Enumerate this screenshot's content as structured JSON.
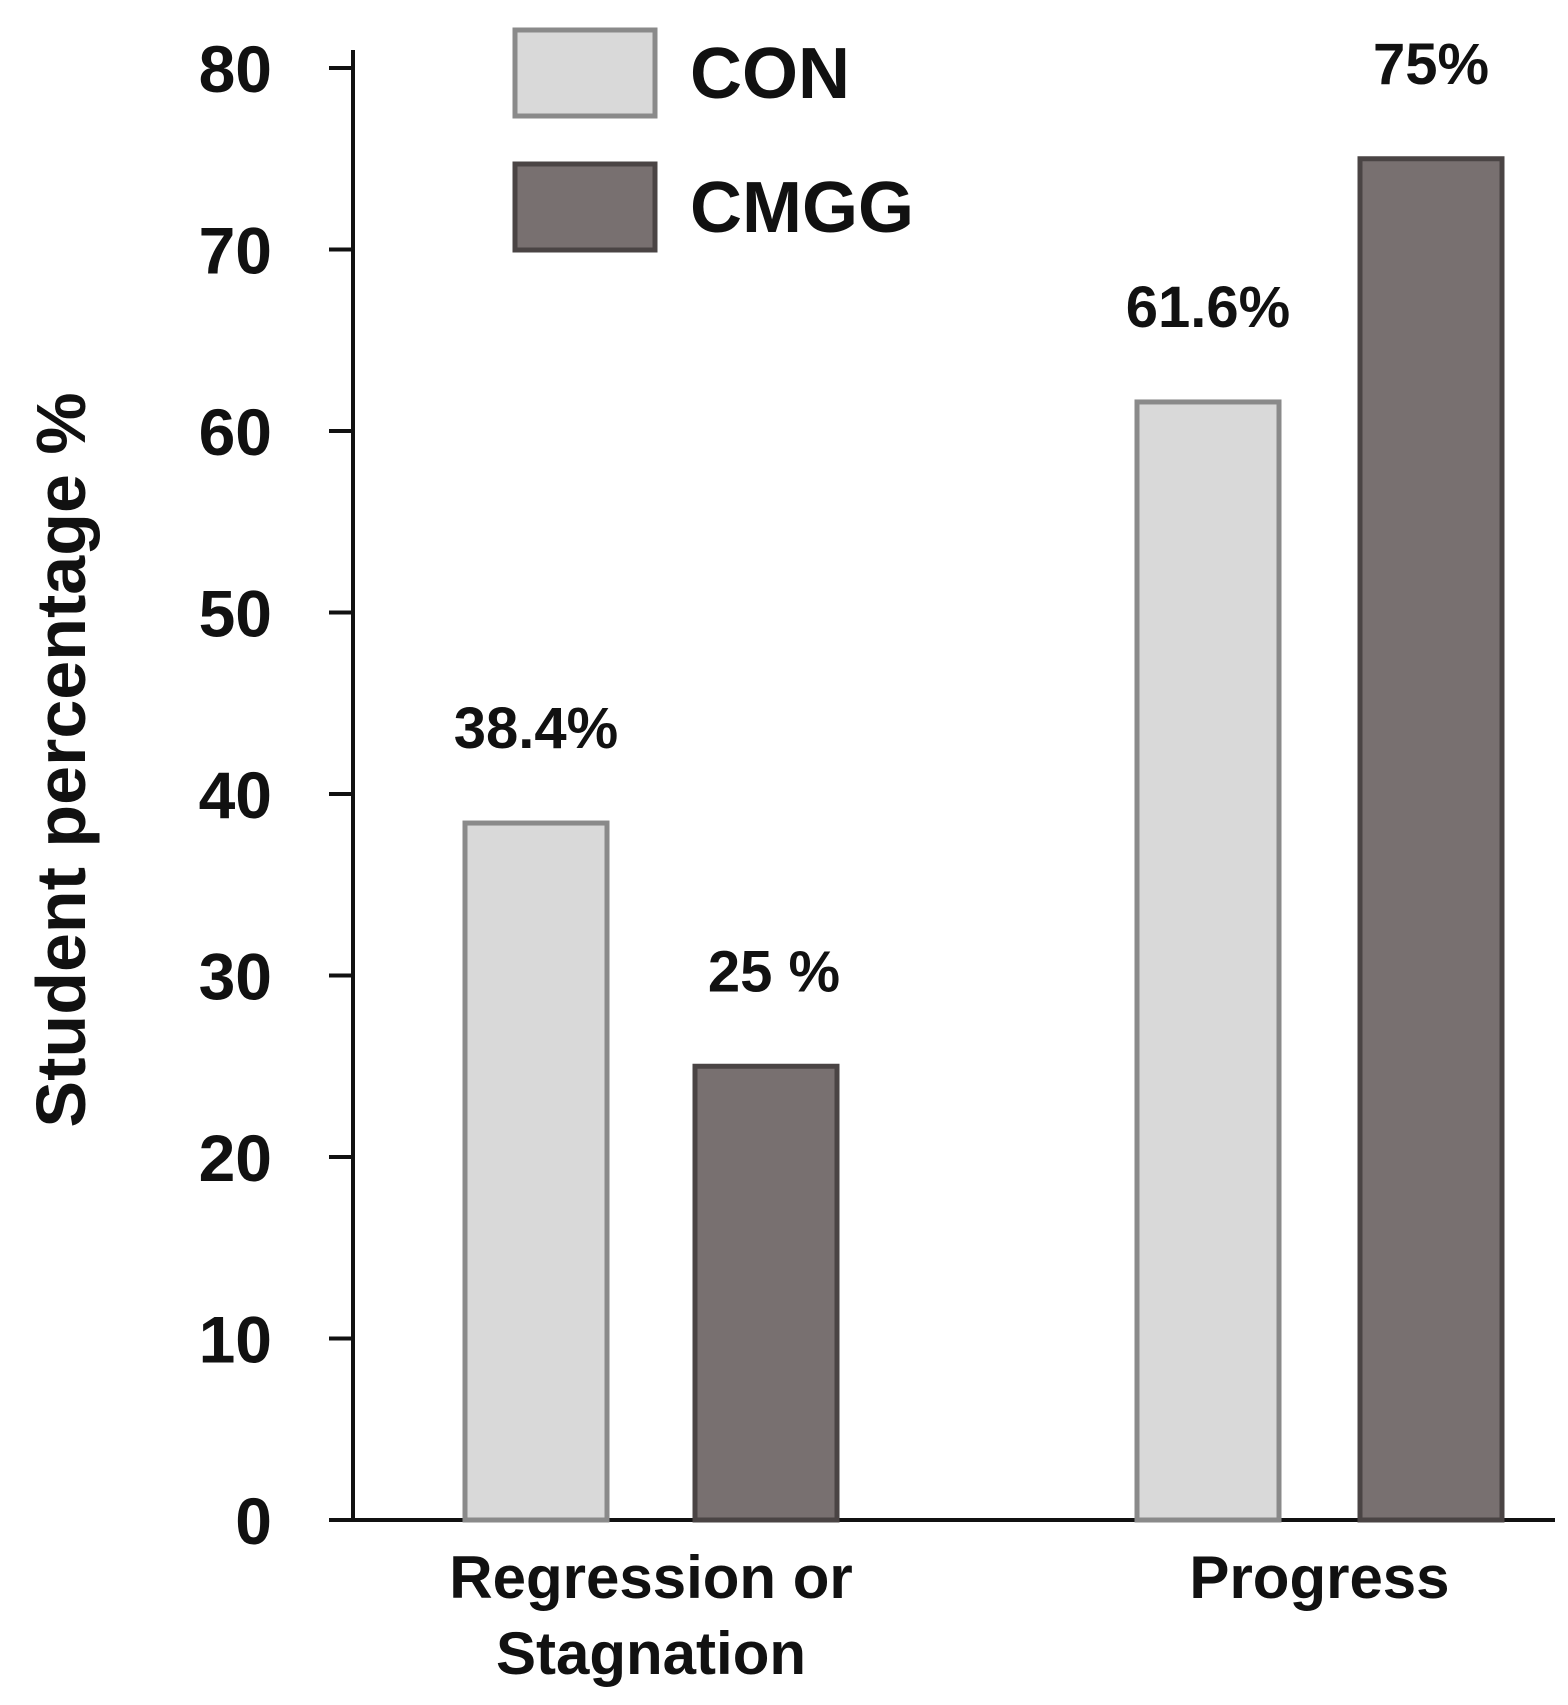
{
  "chart_data": {
    "type": "bar",
    "title": "",
    "xlabel": "",
    "ylabel": "Student percentage %",
    "ylim": [
      0,
      80
    ],
    "yticks": [
      0,
      10,
      20,
      30,
      40,
      50,
      60,
      70,
      80
    ],
    "categories": [
      "Regression or\nStagnation",
      "Progress"
    ],
    "series": [
      {
        "name": "CON",
        "values": [
          38.4,
          61.6
        ],
        "labels": [
          "38.4%",
          "61.6%"
        ],
        "color": "#d9d9d9",
        "stroke": "#8a8a8a"
      },
      {
        "name": "CMGG",
        "values": [
          25,
          75
        ],
        "labels": [
          "25 %",
          "75%"
        ],
        "color": "#787070",
        "stroke": "#4a4444"
      }
    ],
    "legend_position": "top-left",
    "grid": false
  }
}
